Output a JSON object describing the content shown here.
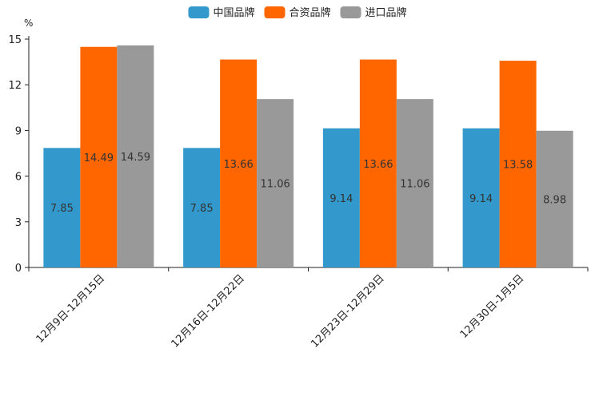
{
  "chart_data": {
    "type": "bar",
    "title": "",
    "xlabel": "",
    "ylabel": "%",
    "ylim": [
      0,
      15
    ],
    "yticks": [
      0,
      3,
      6,
      9,
      12,
      15
    ],
    "grid": false,
    "legend_position": "top-center",
    "categories": [
      "12月9日-12月15日",
      "12月16日-12月22日",
      "12月23日-12月29日",
      "12月30日-1月5日"
    ],
    "series": [
      {
        "name": "中国品牌",
        "color": "#3399cc",
        "values": [
          7.85,
          7.85,
          9.14,
          9.14
        ]
      },
      {
        "name": "合资品牌",
        "color": "#ff6600",
        "values": [
          14.49,
          13.66,
          13.66,
          13.58
        ]
      },
      {
        "name": "进口品牌",
        "color": "#999999",
        "values": [
          14.59,
          11.06,
          11.06,
          8.98
        ]
      }
    ]
  }
}
